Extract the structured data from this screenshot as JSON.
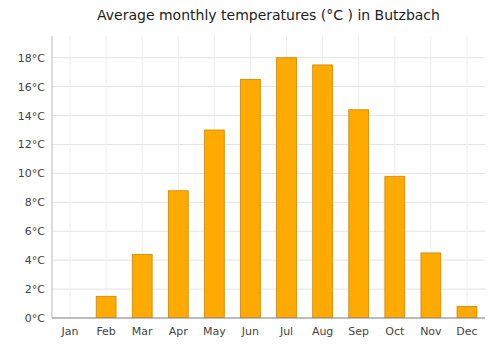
{
  "chart_data": {
    "type": "bar",
    "title": "Average monthly temperatures (°C ) in Butzbach",
    "categories": [
      "Jan",
      "Feb",
      "Mar",
      "Apr",
      "May",
      "Jun",
      "Jul",
      "Aug",
      "Sep",
      "Oct",
      "Nov",
      "Dec"
    ],
    "values": [
      0.0,
      1.5,
      4.4,
      8.8,
      13.0,
      16.5,
      18.0,
      17.5,
      14.4,
      9.8,
      4.5,
      0.8
    ],
    "color": "#FFAA00",
    "ylim": [
      0,
      19.5
    ],
    "yticks": [
      {
        "value": 0,
        "label": "0°C"
      },
      {
        "value": 2,
        "label": "2°C"
      },
      {
        "value": 4,
        "label": "4°C"
      },
      {
        "value": 6,
        "label": "6°C"
      },
      {
        "value": 8,
        "label": "8°C"
      },
      {
        "value": 10,
        "label": "10°C"
      },
      {
        "value": 12,
        "label": "12°C"
      },
      {
        "value": 14,
        "label": "14°C"
      },
      {
        "value": 16,
        "label": "16°C"
      },
      {
        "value": 18,
        "label": "18°C"
      }
    ],
    "grid": true
  }
}
